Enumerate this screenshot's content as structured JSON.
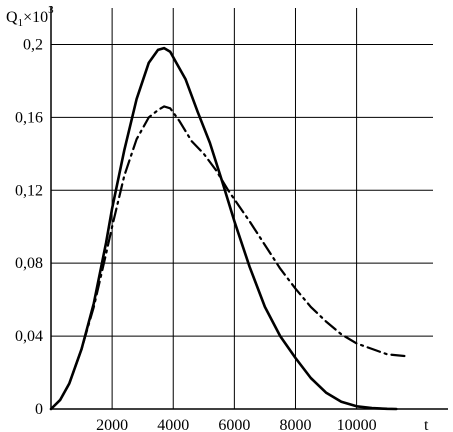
{
  "chart_data": {
    "type": "line",
    "title": "",
    "xlabel": "t",
    "ylabel": {
      "main": "Q",
      "sub": "1",
      "mid": "×10",
      "sup": "3"
    },
    "xlim": [
      0,
      12500
    ],
    "ylim": [
      0,
      0.22
    ],
    "grid": true,
    "x_ticks": [
      {
        "value": 2000,
        "label": "2000"
      },
      {
        "value": 4000,
        "label": "4000"
      },
      {
        "value": 6000,
        "label": "6000"
      },
      {
        "value": 8000,
        "label": "8000"
      },
      {
        "value": 10000,
        "label": "10000"
      }
    ],
    "y_ticks": [
      {
        "value": 0,
        "label": "0"
      },
      {
        "value": 0.04,
        "label": "0,04"
      },
      {
        "value": 0.08,
        "label": "0,08"
      },
      {
        "value": 0.12,
        "label": "0,12"
      },
      {
        "value": 0.16,
        "label": "0,16"
      },
      {
        "value": 0.2,
        "label": "0,2"
      }
    ],
    "series": [
      {
        "style": "solid",
        "color": "#000000",
        "x": [
          0,
          300,
          600,
          1000,
          1400,
          1800,
          2000,
          2400,
          2800,
          3200,
          3500,
          3700,
          3900,
          4100,
          4400,
          4800,
          5200,
          5600,
          6000,
          6500,
          7000,
          7500,
          8000,
          8500,
          9000,
          9500,
          10000,
          10500,
          11000,
          11300
        ],
        "y": [
          0,
          0.005,
          0.014,
          0.033,
          0.058,
          0.091,
          0.11,
          0.142,
          0.17,
          0.19,
          0.197,
          0.198,
          0.196,
          0.19,
          0.181,
          0.163,
          0.146,
          0.125,
          0.103,
          0.078,
          0.056,
          0.04,
          0.028,
          0.017,
          0.009,
          0.004,
          0.0015,
          0.0005,
          0.0001,
          0
        ]
      },
      {
        "style": "dashdot",
        "color": "#000000",
        "x": [
          0,
          300,
          600,
          1000,
          1400,
          1800,
          2000,
          2400,
          2800,
          3200,
          3500,
          3700,
          3900,
          4200,
          4600,
          5000,
          5400,
          5800,
          6000,
          6500,
          7000,
          7500,
          8000,
          8500,
          9000,
          9500,
          10000,
          10500,
          11000,
          11600
        ],
        "y": [
          0,
          0.005,
          0.014,
          0.033,
          0.056,
          0.085,
          0.1,
          0.128,
          0.148,
          0.16,
          0.164,
          0.166,
          0.165,
          0.158,
          0.147,
          0.14,
          0.131,
          0.12,
          0.115,
          0.103,
          0.09,
          0.077,
          0.066,
          0.056,
          0.048,
          0.041,
          0.036,
          0.033,
          0.03,
          0.029
        ]
      }
    ]
  }
}
